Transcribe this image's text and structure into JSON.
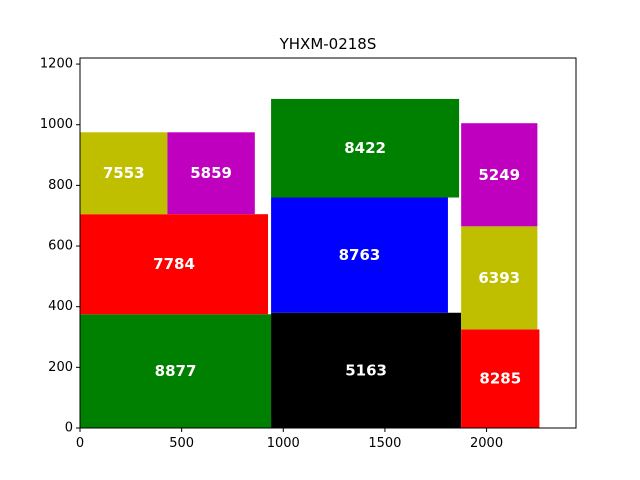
{
  "chart_data": {
    "type": "mosaic",
    "title": "YHXM-0218S",
    "xlim": [
      0,
      2440
    ],
    "ylim": [
      0,
      1220
    ],
    "xticks": [
      0,
      500,
      1000,
      1500,
      2000
    ],
    "yticks": [
      0,
      200,
      400,
      600,
      800,
      1000,
      1200
    ],
    "rects": [
      {
        "label": "8877",
        "x": 0,
        "y": 0,
        "w": 940,
        "h": 375,
        "color": "#008000"
      },
      {
        "label": "7784",
        "x": 0,
        "y": 375,
        "w": 925,
        "h": 330,
        "color": "#ff0000"
      },
      {
        "label": "7553",
        "x": 0,
        "y": 705,
        "w": 430,
        "h": 270,
        "color": "#bfbf00"
      },
      {
        "label": "5859",
        "x": 430,
        "y": 705,
        "w": 430,
        "h": 270,
        "color": "#bf00bf"
      },
      {
        "label": "5163",
        "x": 940,
        "y": 0,
        "w": 935,
        "h": 380,
        "color": "#000000"
      },
      {
        "label": "8763",
        "x": 940,
        "y": 380,
        "w": 870,
        "h": 380,
        "color": "#0000ff"
      },
      {
        "label": "8422",
        "x": 940,
        "y": 760,
        "w": 925,
        "h": 325,
        "color": "#008000"
      },
      {
        "label": "8285",
        "x": 1875,
        "y": 0,
        "w": 385,
        "h": 325,
        "color": "#ff0000"
      },
      {
        "label": "6393",
        "x": 1875,
        "y": 325,
        "w": 375,
        "h": 340,
        "color": "#bfbf00"
      },
      {
        "label": "5249",
        "x": 1875,
        "y": 665,
        "w": 375,
        "h": 340,
        "color": "#bf00bf"
      }
    ]
  }
}
